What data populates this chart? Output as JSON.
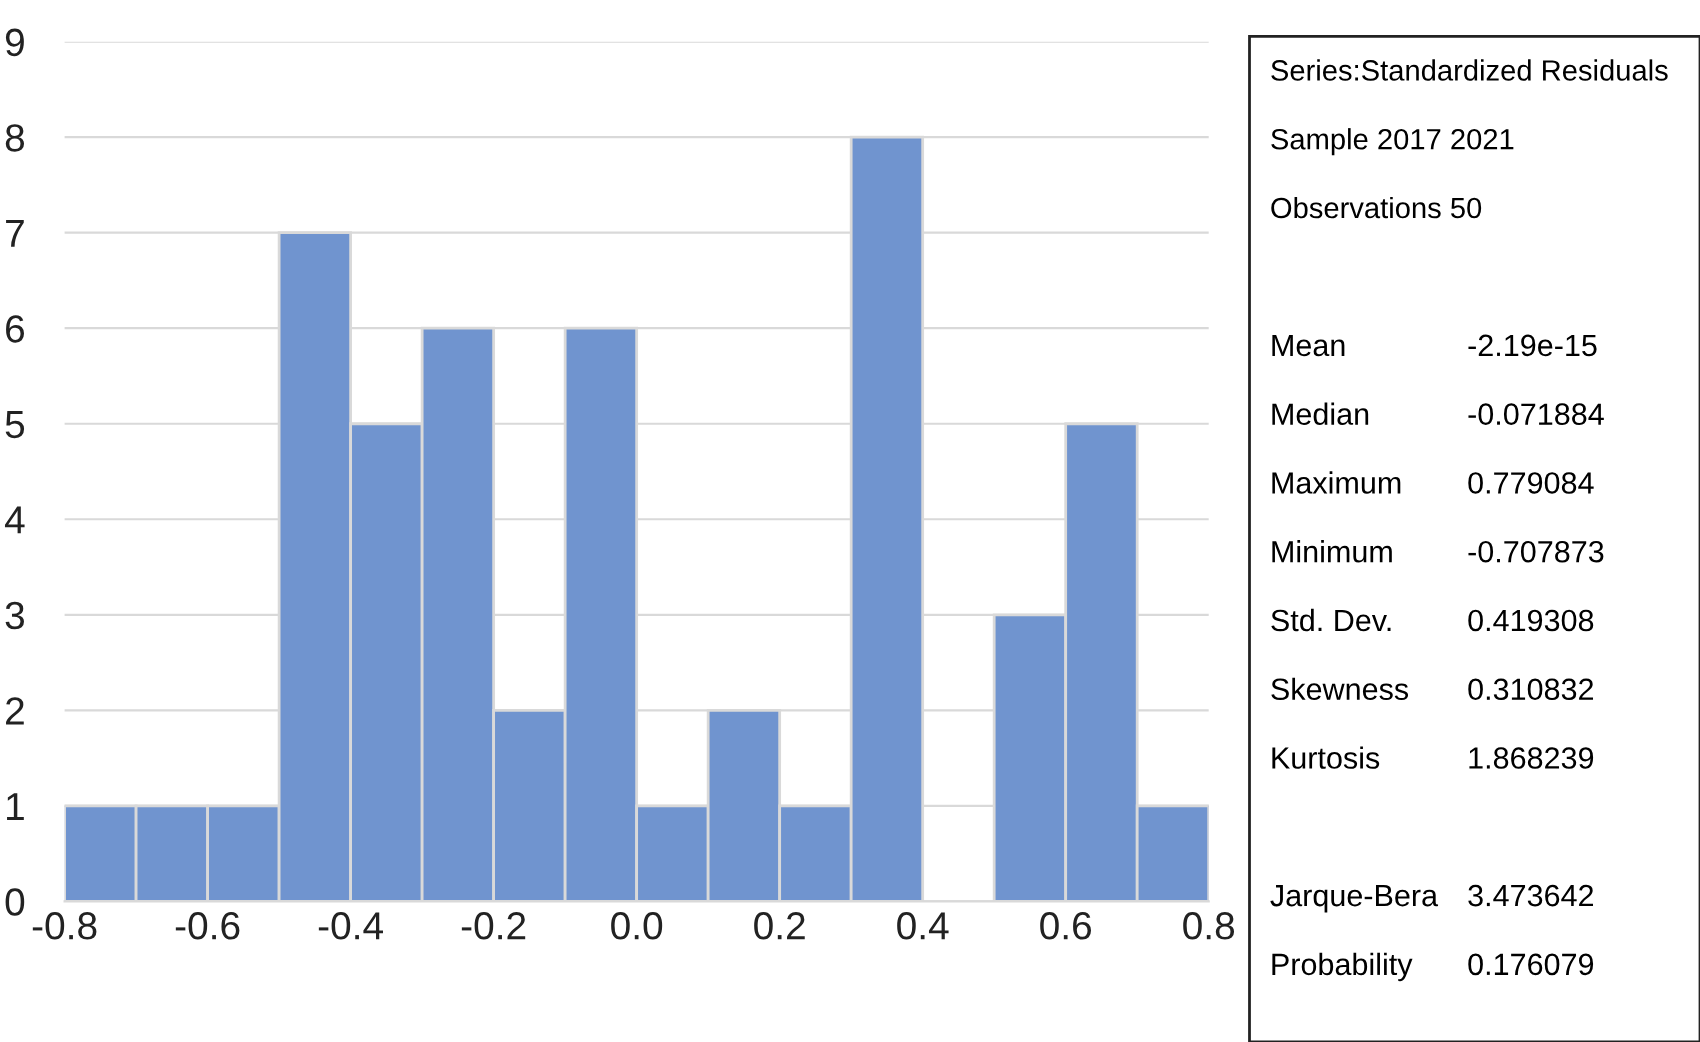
{
  "chart_data": {
    "type": "histogram",
    "bins": [
      -0.8,
      -0.7,
      -0.6,
      -0.5,
      -0.4,
      -0.3,
      -0.2,
      -0.1,
      0.0,
      0.1,
      0.2,
      0.3,
      0.4,
      0.5,
      0.6,
      0.7,
      0.8
    ],
    "values": [
      1,
      1,
      1,
      7,
      5,
      6,
      2,
      6,
      1,
      2,
      1,
      8,
      0,
      3,
      5,
      1
    ],
    "color": "#7094cf",
    "xlim": [
      -0.8,
      0.8
    ],
    "xticks": [
      {
        "value": -0.8,
        "label": "-0.8"
      },
      {
        "value": -0.6,
        "label": "-0.6"
      },
      {
        "value": -0.4,
        "label": "-0.4"
      },
      {
        "value": -0.2,
        "label": "-0.2"
      },
      {
        "value": 0.0,
        "label": "0.0"
      },
      {
        "value": 0.2,
        "label": "0.2"
      },
      {
        "value": 0.4,
        "label": "0.4"
      },
      {
        "value": 0.6,
        "label": "0.6"
      },
      {
        "value": 0.8,
        "label": "0.8"
      }
    ],
    "ylim": [
      0,
      9
    ],
    "yticks": [
      0,
      1,
      2,
      3,
      4,
      5,
      6,
      7,
      8,
      9
    ],
    "grid": "y",
    "annotations": [
      "Series:Standardized Residuals",
      "Sample 2017 2021",
      "Observations 50",
      "Mean",
      "-2.19e-15",
      "Median",
      "-0.071884",
      "Maximum",
      "0.779084",
      "Minimum",
      "-0.707873",
      "Std. Dev.",
      "0.419308",
      "Skewness",
      "0.310832",
      "Kurtosis",
      "1.868239",
      "Jarque-Bera",
      "3.473642",
      "Probability",
      "0.176079"
    ]
  }
}
